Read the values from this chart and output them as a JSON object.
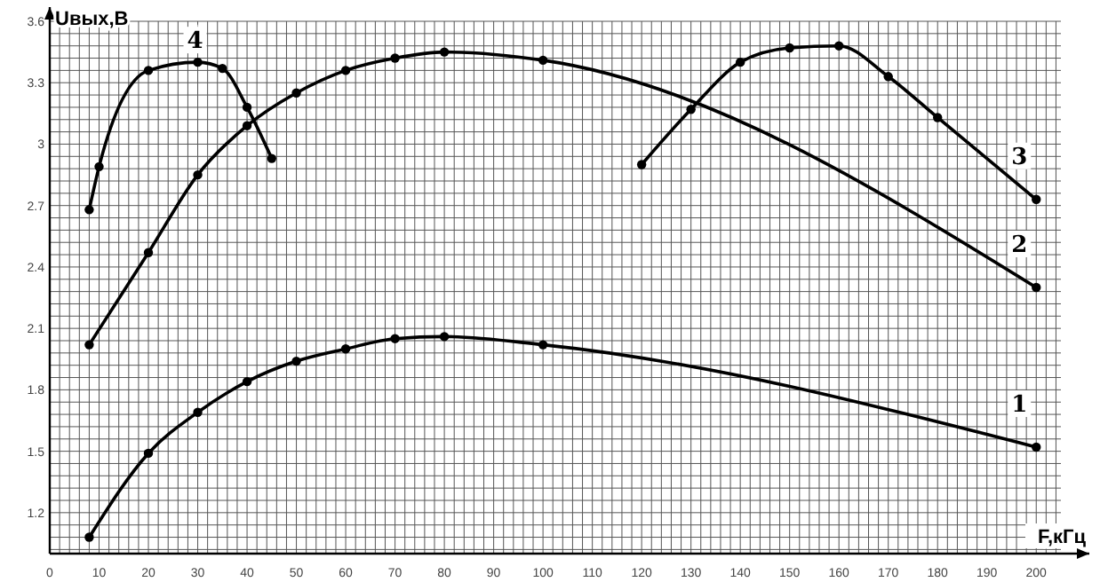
{
  "chart_data": {
    "type": "line",
    "xlabel": "F,кГц",
    "ylabel": "Uвых,В",
    "xlim": [
      0,
      205
    ],
    "ylim": [
      1.0,
      3.6
    ],
    "xticks": [
      0,
      10,
      20,
      30,
      40,
      50,
      60,
      70,
      80,
      90,
      100,
      110,
      120,
      130,
      140,
      150,
      160,
      170,
      180,
      190,
      200
    ],
    "yticks": [
      1.2,
      1.5,
      1.8,
      2.1,
      2.4,
      2.7,
      3,
      3.3,
      3.6
    ],
    "grid": true,
    "marker": "circle",
    "line_style": "solid",
    "series": [
      {
        "name": "1",
        "color": "#000000",
        "x": [
          8,
          20,
          30,
          40,
          50,
          60,
          70,
          80,
          100,
          200
        ],
        "values": [
          1.08,
          1.49,
          1.69,
          1.84,
          1.94,
          2.0,
          2.05,
          2.06,
          2.02,
          1.52
        ]
      },
      {
        "name": "2",
        "color": "#000000",
        "x": [
          8,
          20,
          30,
          40,
          50,
          60,
          70,
          80,
          100,
          200
        ],
        "values": [
          2.02,
          2.47,
          2.85,
          3.09,
          3.25,
          3.36,
          3.42,
          3.45,
          3.41,
          2.3
        ]
      },
      {
        "name": "3",
        "color": "#000000",
        "x": [
          120,
          130,
          140,
          150,
          160,
          170,
          180,
          200
        ],
        "values": [
          2.9,
          3.17,
          3.4,
          3.47,
          3.48,
          3.33,
          3.13,
          2.73
        ]
      },
      {
        "name": "4",
        "color": "#000000",
        "x": [
          8,
          10,
          20,
          30,
          35,
          40,
          45
        ],
        "values": [
          2.68,
          2.89,
          3.36,
          3.4,
          3.37,
          3.18,
          2.93
        ]
      }
    ]
  }
}
